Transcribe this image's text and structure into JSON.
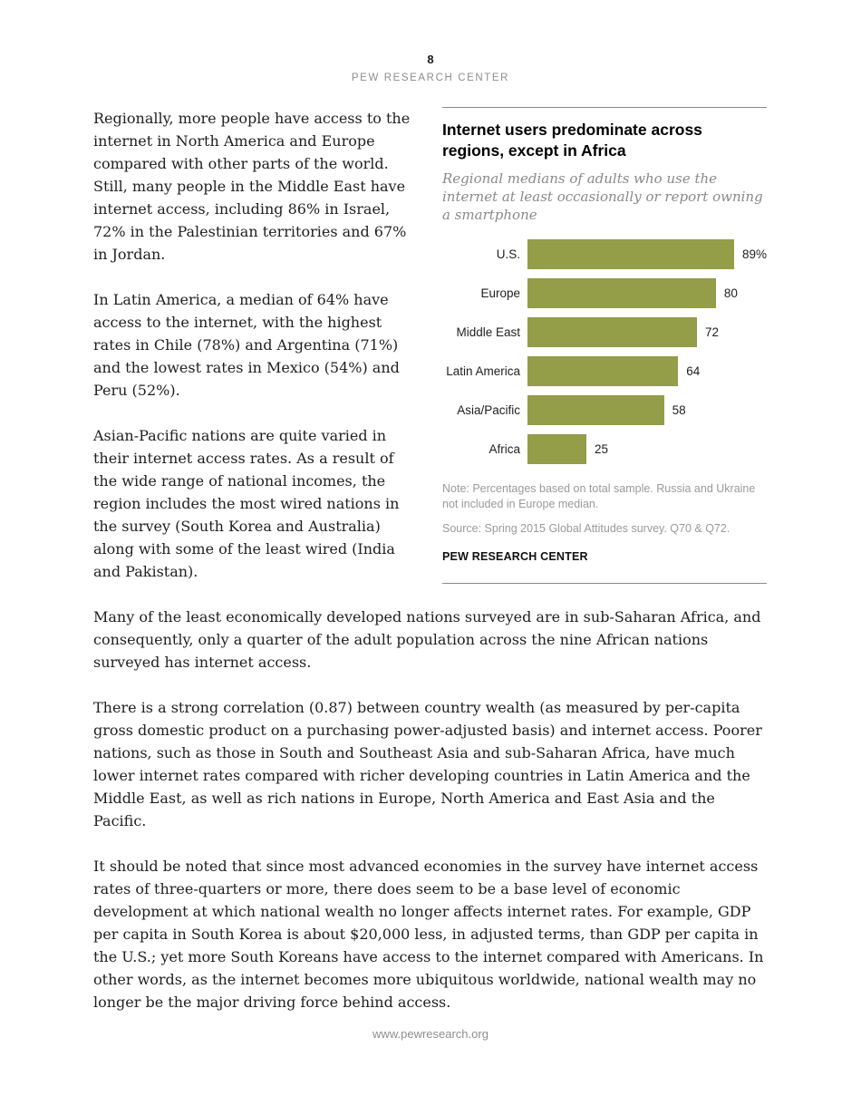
{
  "page": {
    "number": "8",
    "header": "PEW RESEARCH CENTER",
    "footer": "www.pewresearch.org"
  },
  "article": {
    "paragraphs": [
      "Regionally, more people have access to the internet in North America and Europe compared with other parts of the world. Still, many people in the Middle East have internet access, including 86% in Israel, 72% in the Palestinian territories and 67% in Jordan.",
      "In Latin America, a median of 64% have access to the internet, with the highest rates in Chile (78%) and Argentina (71%) and the lowest rates in Mexico (54%) and Peru (52%).",
      "Asian-Pacific nations are quite varied in their internet access rates. As a result of the wide range of national incomes, the region includes the most wired nations in the survey (South Korea and Australia) along with some of the least wired (India and Pakistan).",
      "Many of the least economically developed nations surveyed are in sub-Saharan Africa, and consequently, only a quarter of the adult population across the nine African nations surveyed has internet access.",
      "There is a strong correlation (0.87) between country wealth (as measured by per-capita gross domestic product on a purchasing power-adjusted basis) and internet access. Poorer nations, such as those in South and Southeast Asia and sub-Saharan Africa, have much lower internet rates compared with richer developing countries in Latin America and the Middle East, as well as rich nations in Europe, North America and East Asia and the Pacific.",
      "It should be noted that since most advanced economies in the survey have internet access rates of three-quarters or more, there does seem to be a base level of economic development at which national wealth no longer affects internet rates. For example, GDP per capita in South Korea is about $20,000 less, in adjusted terms, than GDP per capita in the U.S.; yet more South Koreans have access to the internet compared with Americans. In other words, as the internet becomes more ubiquitous worldwide, national wealth may no longer be the major driving force behind access."
    ]
  },
  "chart": {
    "title": "Internet users predominate across regions, except in Africa",
    "subtitle": "Regional medians of adults who use the internet at least occasionally or report owning a smartphone",
    "note": "Note: Percentages based on total sample. Russia and Ukraine not included in Europe median.",
    "source": "Source: Spring 2015 Global Attitudes survey. Q70 & Q72.",
    "branding": "PEW RESEARCH CENTER",
    "bar_color": "#949d48"
  },
  "chart_data": {
    "type": "bar",
    "orientation": "horizontal",
    "title": "Internet users predominate across regions, except in Africa",
    "subtitle": "Regional medians of adults who use the internet at least occasionally or report owning a smartphone",
    "categories": [
      "U.S.",
      "Europe",
      "Middle East",
      "Latin America",
      "Asia/Pacific",
      "Africa"
    ],
    "values": [
      89,
      80,
      72,
      64,
      58,
      25
    ],
    "value_labels": [
      "89%",
      "80",
      "72",
      "64",
      "58",
      "25"
    ],
    "xlabel": "",
    "ylabel": "",
    "xlim": [
      0,
      100
    ],
    "grid": false,
    "legend": false,
    "bar_color": "#949d48"
  }
}
